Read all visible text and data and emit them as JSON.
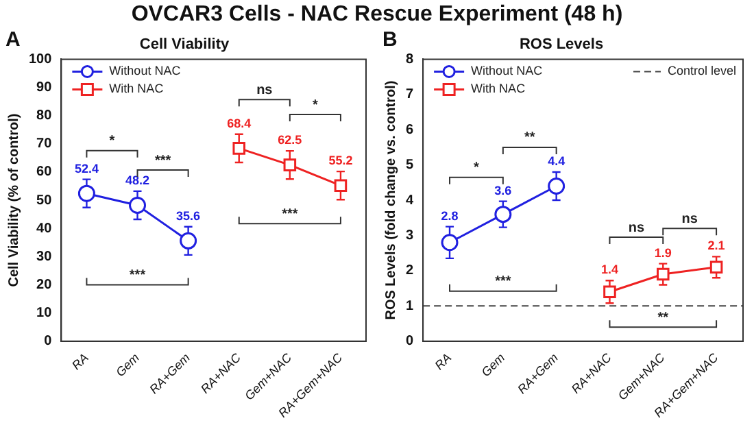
{
  "chart_data": [
    {
      "type": "line",
      "title": "Cell Viability",
      "ylabel": "Cell Viability (% of control)",
      "categories": [
        "RA",
        "Gem",
        "RA+Gem",
        "RA+NAC",
        "Gem+NAC",
        "RA+Gem+NAC"
      ],
      "series": [
        {
          "name": "Without NAC",
          "color": "#2020e0",
          "marker": "circle",
          "values": [
            52.4,
            48.2,
            35.6,
            null,
            null,
            null
          ],
          "errors": [
            5,
            5,
            5,
            null,
            null,
            null
          ],
          "value_labels": [
            "52.4",
            "48.2",
            "35.6",
            null,
            null,
            null
          ]
        },
        {
          "name": "With NAC",
          "color": "#ee2222",
          "marker": "square",
          "values": [
            null,
            null,
            null,
            68.4,
            62.5,
            55.2
          ],
          "errors": [
            null,
            null,
            null,
            5,
            5,
            5
          ],
          "value_labels": [
            null,
            null,
            null,
            "68.4",
            "62.5",
            "55.2"
          ]
        }
      ],
      "ylim": [
        0,
        100
      ],
      "yticks": [
        0,
        10,
        20,
        30,
        40,
        50,
        60,
        70,
        80,
        90,
        100
      ],
      "grid": false,
      "legend": "top left",
      "line_style": "solid",
      "annotations": [
        "OVCAR3 Cells - NAC Rescue Experiment (48 h)",
        "A",
        "*",
        "***",
        "***",
        "ns",
        "*",
        "***"
      ]
    },
    {
      "type": "line",
      "title": "ROS Levels",
      "ylabel": "ROS Levels (fold change vs. control)",
      "categories": [
        "RA",
        "Gem",
        "RA+Gem",
        "RA+NAC",
        "Gem+NAC",
        "RA+Gem+NAC"
      ],
      "series": [
        {
          "name": "Without NAC",
          "color": "#2020e0",
          "marker": "circle",
          "values": [
            2.8,
            3.6,
            4.4,
            null,
            null,
            null
          ],
          "errors": [
            0.45,
            0.37,
            0.4,
            null,
            null,
            null
          ],
          "value_labels": [
            "2.8",
            "3.6",
            "4.4",
            null,
            null,
            null
          ]
        },
        {
          "name": "With NAC",
          "color": "#ee2222",
          "marker": "square",
          "values": [
            null,
            null,
            null,
            1.4,
            1.9,
            2.1
          ],
          "errors": [
            null,
            null,
            null,
            0.32,
            0.3,
            0.3
          ],
          "value_labels": [
            null,
            null,
            null,
            "1.4",
            "1.9",
            "2.1"
          ]
        }
      ],
      "ylim": [
        0,
        8
      ],
      "yticks": [
        0,
        1,
        2,
        3,
        4,
        5,
        6,
        7,
        8
      ],
      "grid": false,
      "legend": "top left",
      "line_style": "solid",
      "ref_lines": [
        {
          "axis": "y",
          "value": 1,
          "label": "Control level",
          "color": "#444444",
          "line_style": "dashed"
        }
      ],
      "annotations": [
        "B",
        "*",
        "**",
        "***",
        "ns",
        "ns",
        "**"
      ]
    }
  ]
}
